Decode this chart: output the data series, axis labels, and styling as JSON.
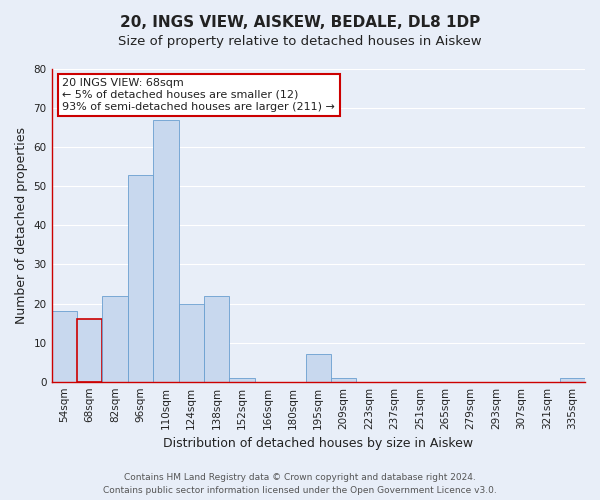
{
  "title": "20, INGS VIEW, AISKEW, BEDALE, DL8 1DP",
  "subtitle": "Size of property relative to detached houses in Aiskew",
  "xlabel": "Distribution of detached houses by size in Aiskew",
  "ylabel": "Number of detached properties",
  "footer_line1": "Contains HM Land Registry data © Crown copyright and database right 2024.",
  "footer_line2": "Contains public sector information licensed under the Open Government Licence v3.0.",
  "annotation_line1": "20 INGS VIEW: 68sqm",
  "annotation_line2": "← 5% of detached houses are smaller (12)",
  "annotation_line3": "93% of semi-detached houses are larger (211) →",
  "bar_labels": [
    "54sqm",
    "68sqm",
    "82sqm",
    "96sqm",
    "110sqm",
    "124sqm",
    "138sqm",
    "152sqm",
    "166sqm",
    "180sqm",
    "195sqm",
    "209sqm",
    "223sqm",
    "237sqm",
    "251sqm",
    "265sqm",
    "279sqm",
    "293sqm",
    "307sqm",
    "321sqm",
    "335sqm"
  ],
  "bar_values": [
    18,
    16,
    22,
    53,
    67,
    20,
    22,
    1,
    0,
    0,
    7,
    1,
    0,
    0,
    0,
    0,
    0,
    0,
    0,
    0,
    1
  ],
  "highlight_index": 1,
  "bar_color": "#c8d8ee",
  "bar_edge_color": "#6a9fd0",
  "highlight_bar_edge_color": "#cc0000",
  "red_spine_color": "#cc0000",
  "ylim": [
    0,
    80
  ],
  "yticks": [
    0,
    10,
    20,
    30,
    40,
    50,
    60,
    70,
    80
  ],
  "annotation_box_edge_color": "#cc0000",
  "annotation_box_face_color": "#ffffff",
  "background_color": "#e8eef8",
  "plot_bg_color": "#e8eef8",
  "title_fontsize": 11,
  "subtitle_fontsize": 9.5,
  "axis_label_fontsize": 9,
  "tick_fontsize": 7.5,
  "footer_fontsize": 6.5,
  "annotation_fontsize": 8
}
